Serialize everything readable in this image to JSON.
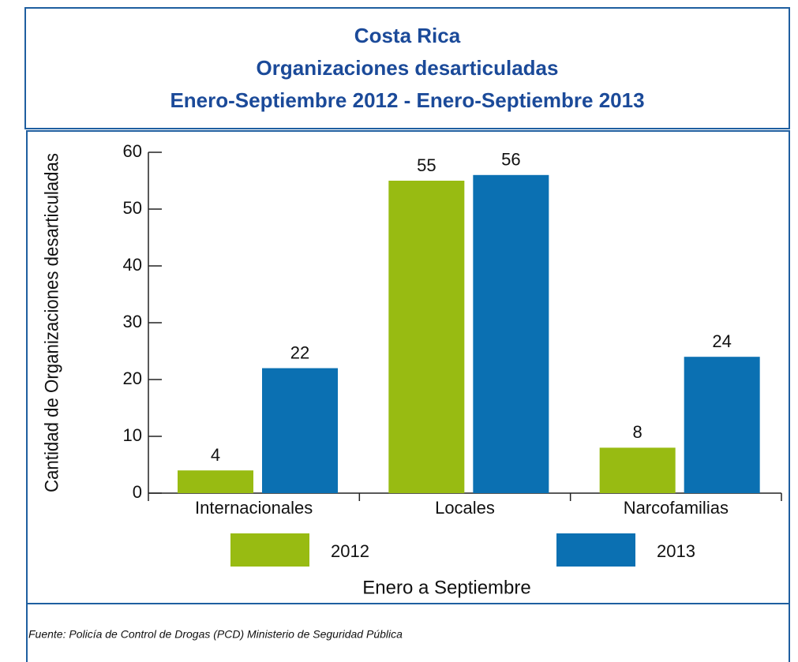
{
  "chart_data": {
    "type": "bar",
    "title": [
      "Costa Rica",
      "Organizaciones desarticuladas",
      "Enero-Septiembre 2012 - Enero-Septiembre 2013"
    ],
    "categories": [
      "Internacionales",
      "Locales",
      "Narcofamilias"
    ],
    "series": [
      {
        "name": "2012",
        "color": "#98bb12",
        "values": [
          4,
          55,
          8
        ]
      },
      {
        "name": "2013",
        "color": "#0b70b2",
        "values": [
          22,
          56,
          24
        ]
      }
    ],
    "ylim": [
      0,
      60
    ],
    "yticks": [
      0,
      10,
      20,
      30,
      40,
      50,
      60
    ],
    "ylabel": "Cantidad de Organizaciones desarticuladas",
    "xlabel": "Enero a Septiembre",
    "source": "Fuente: Policía de Control de Drogas (PCD) Ministerio de Seguridad Pública"
  }
}
